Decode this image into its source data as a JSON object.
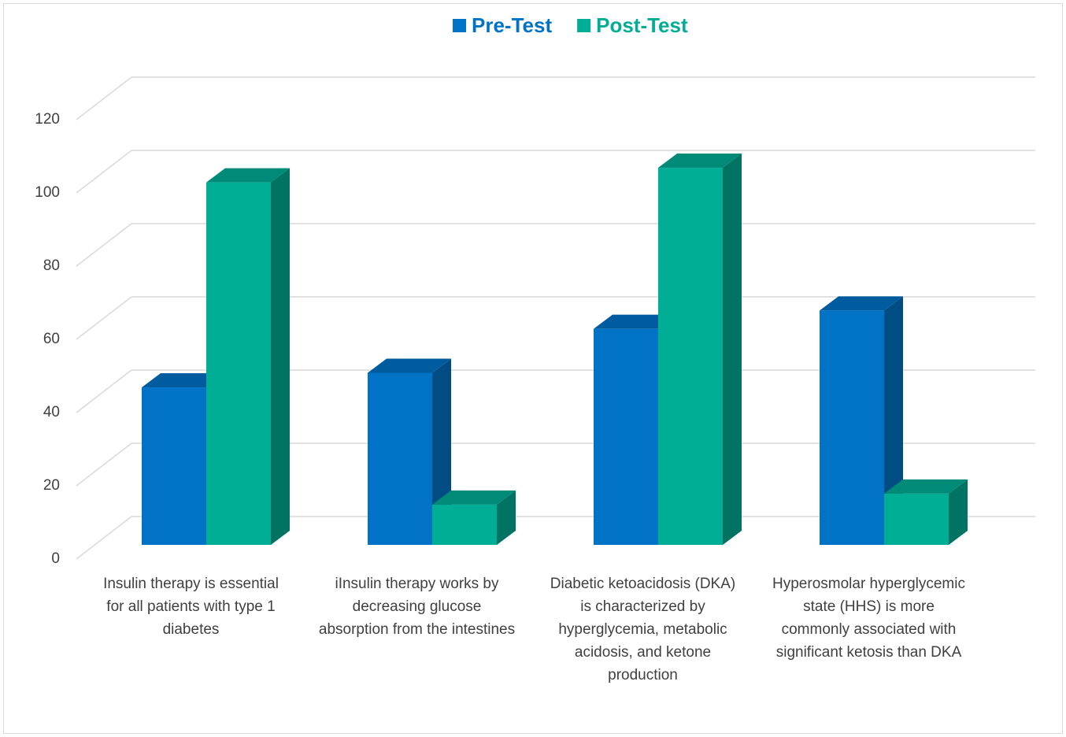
{
  "chart_data": {
    "type": "bar3d",
    "categories": [
      "Insulin therapy is essential for all patients with type 1 diabetes",
      "iInsulin therapy works by decreasing glucose absorption from the intestines",
      "Diabetic ketoacidosis (DKA) is characterized by hyperglycemia, metabolic acidosis, and ketone production",
      "Hyperosmolar hyperglycemic state (HHS) is more commonly associated with significant ketosis than DKA"
    ],
    "series": [
      {
        "name": "Pre-Test",
        "color": "#0073c6",
        "values": [
          43,
          47,
          59,
          64
        ]
      },
      {
        "name": "Post-Test",
        "color": "#00ae96",
        "values": [
          99,
          11,
          103,
          14
        ]
      }
    ],
    "ylim": [
      0,
      120
    ],
    "yticks": [
      0,
      20,
      40,
      60,
      80,
      100,
      120
    ],
    "grid": true,
    "legend": "top"
  }
}
